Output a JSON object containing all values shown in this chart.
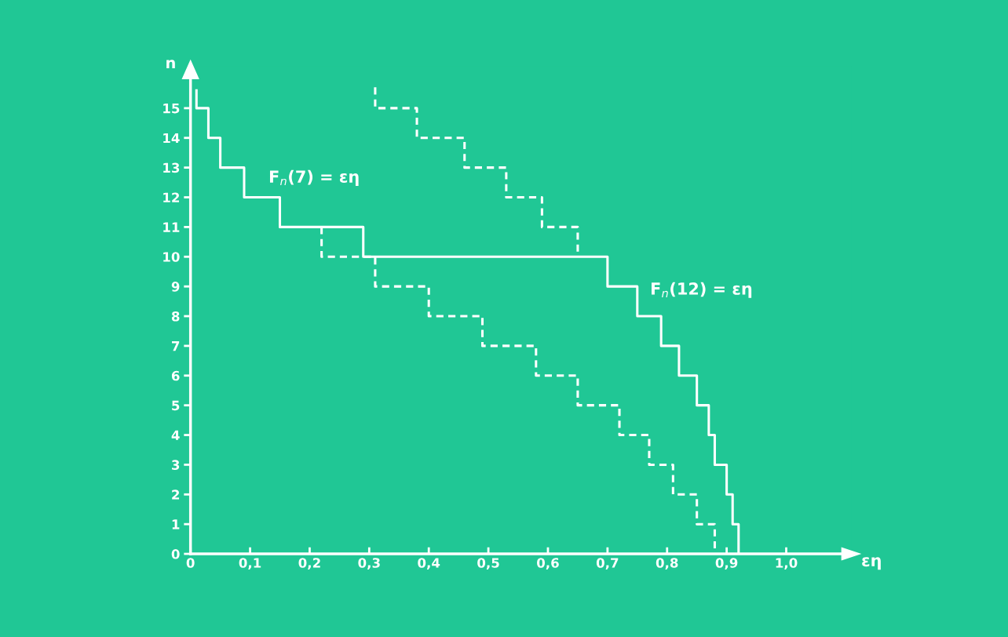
{
  "chart_data": {
    "type": "step",
    "xlabel": "εη",
    "ylabel": "n",
    "series": [
      {
        "color": "#ffffff",
        "line_style": "solid",
        "x": [
          0.01,
          0.01,
          0.03,
          0.05,
          0.09,
          0.15,
          0.29,
          0.7,
          0.75,
          0.79,
          0.82,
          0.85,
          0.87,
          0.88,
          0.9,
          0.91,
          0.92
        ],
        "values": [
          15.6,
          15,
          14,
          13,
          12,
          11,
          10,
          9,
          8,
          7,
          6,
          5,
          4,
          3,
          2,
          1,
          0
        ]
      },
      {
        "color": "#ffffff",
        "line_style": "dashed",
        "x": [
          0.31,
          0.31,
          0.38,
          0.46,
          0.53,
          0.59,
          0.65
        ],
        "values": [
          15.7,
          15,
          14,
          13,
          12,
          11,
          10
        ]
      },
      {
        "color": "#ffffff",
        "line_style": "dashed",
        "x": [
          0.22,
          0.22,
          0.31,
          0.4,
          0.49,
          0.58,
          0.65,
          0.72,
          0.77,
          0.81,
          0.85,
          0.88
        ],
        "values": [
          11,
          10,
          9,
          8,
          7,
          6,
          5,
          4,
          3,
          2,
          1,
          0
        ]
      }
    ],
    "annotations": [
      "F$_{n}$(7) = εη",
      "F$_{n}$(12) = εη"
    ],
    "xlim": [
      0,
      1.11
    ],
    "ylim": [
      0,
      16.4
    ],
    "xticks": [
      0,
      {
        "value": 0.1,
        "label": "0,1"
      },
      {
        "value": 0.2,
        "label": "0,2"
      },
      {
        "value": 0.3,
        "label": "0,3"
      },
      {
        "value": 0.4,
        "label": "0,4"
      },
      {
        "value": 0.5,
        "label": "0,5"
      },
      {
        "value": 0.6,
        "label": "0,6"
      },
      {
        "value": 0.7,
        "label": "0,7"
      },
      {
        "value": 0.8,
        "label": "0,8"
      },
      {
        "value": 0.9,
        "label": "0,9"
      },
      {
        "value": 1.0,
        "label": "1,0"
      }
    ],
    "yticks": [
      0,
      1,
      2,
      3,
      4,
      5,
      6,
      7,
      8,
      9,
      10,
      11,
      12,
      13,
      14,
      15
    ],
    "grid": false,
    "legend": false
  }
}
